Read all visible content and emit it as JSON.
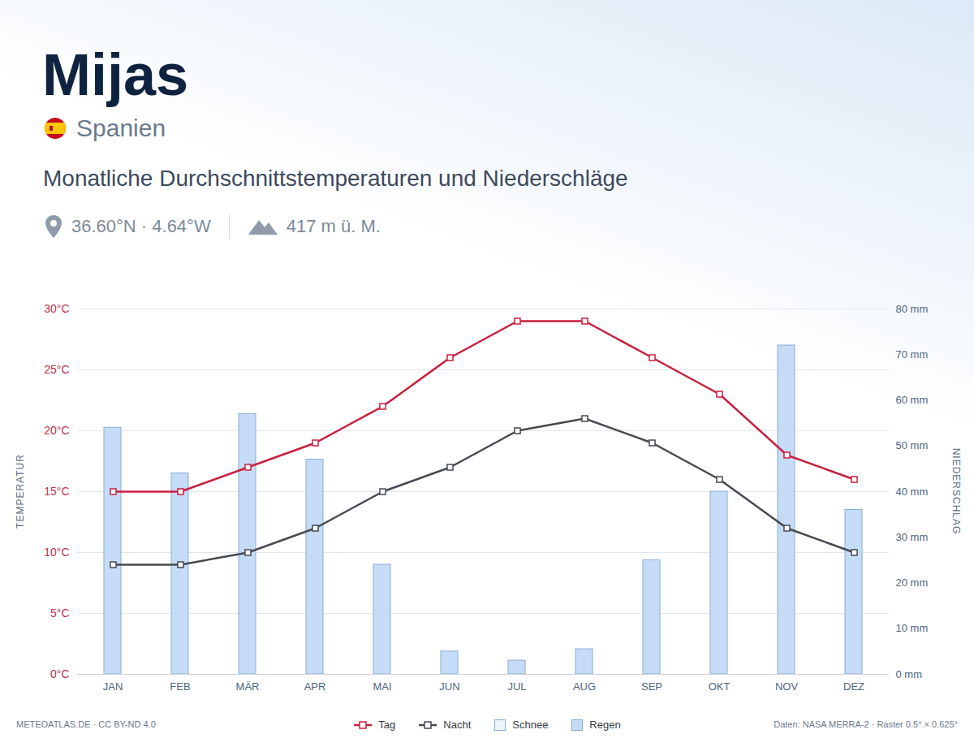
{
  "chart_data": {
    "type": "bar",
    "title": "Mijas",
    "country": "Spanien",
    "subtitle": "Monatliche Durchschnittstemperaturen und Niederschläge",
    "coordinates": "36.60°N · 4.64°W",
    "elevation": "417 m ü. M.",
    "ylabel": "TEMPERATUR",
    "y2label": "NIEDERSCHLAG",
    "credit": "METEOATLAS.DE · CC BY-ND 4.0",
    "source": "Daten: NASA MERRA-2 · Raster 0.5° × 0.625°",
    "categories": [
      "JAN",
      "FEB",
      "MÄR",
      "APR",
      "MAI",
      "JUN",
      "JUL",
      "AUG",
      "SEP",
      "OKT",
      "NOV",
      "DEZ"
    ],
    "series": [
      {
        "name": "Tag",
        "type": "line",
        "axis": "y",
        "color": "#c8203f",
        "marker": "square",
        "line_style": "solid",
        "values": [
          15,
          15,
          17,
          19,
          22,
          26,
          29,
          29,
          26,
          23,
          18,
          16
        ]
      },
      {
        "name": "Nacht",
        "type": "line",
        "axis": "y",
        "color": "#454a50",
        "marker": "square",
        "line_style": "solid",
        "values": [
          9,
          9,
          10,
          12,
          15,
          17,
          20,
          21,
          19,
          16,
          12,
          10
        ]
      },
      {
        "name": "Schnee",
        "type": "bar",
        "axis": "y2",
        "color": "#eef5fd",
        "values": [
          0,
          0,
          0,
          0,
          0,
          0,
          0,
          0,
          0,
          0,
          0,
          0
        ]
      },
      {
        "name": "Regen",
        "type": "bar",
        "axis": "y2",
        "color": "#c6dcf6",
        "values": [
          54,
          44,
          57,
          47,
          24,
          5,
          3,
          5.5,
          25,
          40,
          72,
          36
        ]
      }
    ],
    "stacked": true,
    "ylim": [
      0,
      30
    ],
    "yticks": [
      {
        "value": 0,
        "label": "0°C"
      },
      {
        "value": 5,
        "label": "5°C"
      },
      {
        "value": 10,
        "label": "10°C"
      },
      {
        "value": 15,
        "label": "15°C"
      },
      {
        "value": 20,
        "label": "20°C"
      },
      {
        "value": 25,
        "label": "25°C"
      },
      {
        "value": 30,
        "label": "30°C"
      }
    ],
    "y2lim": [
      0,
      80
    ],
    "y2ticks": [
      {
        "value": 0,
        "label": "0 mm"
      },
      {
        "value": 10,
        "label": "10 mm"
      },
      {
        "value": 20,
        "label": "20 mm"
      },
      {
        "value": 30,
        "label": "30 mm"
      },
      {
        "value": 40,
        "label": "40 mm"
      },
      {
        "value": 50,
        "label": "50 mm"
      },
      {
        "value": 60,
        "label": "60 mm"
      },
      {
        "value": 70,
        "label": "70 mm"
      },
      {
        "value": 80,
        "label": "80 mm"
      }
    ],
    "grid": true,
    "legend": "bottom"
  }
}
